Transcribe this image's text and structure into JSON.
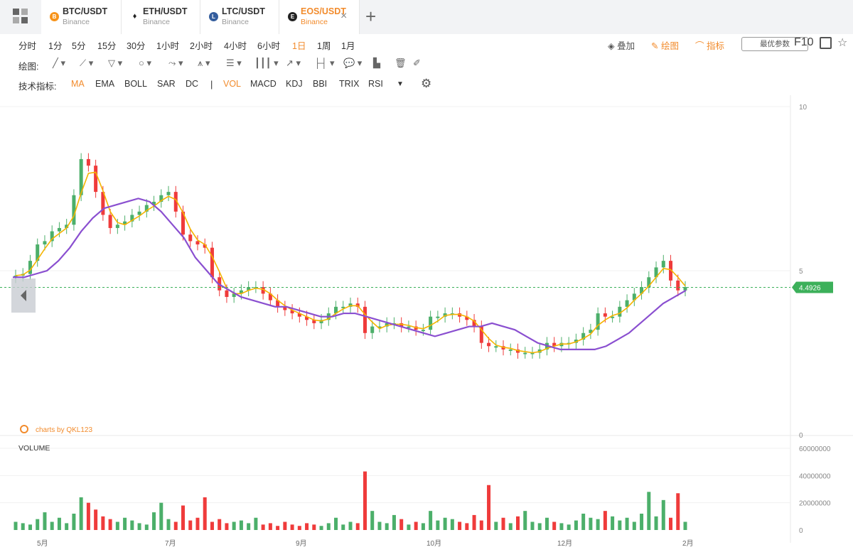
{
  "tabs": [
    {
      "pair": "BTC/USDT",
      "exchange": "Binance",
      "coin_color": "#f7931a",
      "coin_glyph": "B"
    },
    {
      "pair": "ETH/USDT",
      "exchange": "Binance",
      "coin_color": "#ffffff",
      "coin_glyph": "♦"
    },
    {
      "pair": "LTC/USDT",
      "exchange": "Binance",
      "coin_color": "#345d9d",
      "coin_glyph": "L"
    },
    {
      "pair": "EOS/USDT",
      "exchange": "Binance",
      "coin_color": "#222222",
      "coin_glyph": "E"
    }
  ],
  "close_glyph": "×",
  "add_glyph": "+",
  "periods": [
    "分时",
    "1分",
    "5分",
    "15分",
    "30分",
    "1小时",
    "2小时",
    "4小时",
    "6小时",
    "1日",
    "1周",
    "1月"
  ],
  "active_period": "1日",
  "right_tools": {
    "overlay": "叠加",
    "draw": "绘图",
    "indicator": "指标",
    "optimal_params": "最优参数",
    "f10": "F10"
  },
  "draw_label": "绘图:",
  "indicators_label": "技术指标:",
  "indicators_main": [
    "MA",
    "EMA",
    "BOLL",
    "SAR",
    "DC"
  ],
  "indicators_sub": [
    "VOL",
    "MACD",
    "KDJ",
    "BBI",
    "TRIX",
    "RSI"
  ],
  "active_indicator": "MA",
  "active_sub_indicator": "VOL",
  "watermark": "charts by QKL123",
  "volume_label": "VOLUME",
  "colors": {
    "up": "#4caf6a",
    "down": "#ef3b3b",
    "ma_short": "#f5b400",
    "ma_long": "#8a4fd0",
    "accent": "#f28b2c",
    "price_tag": "#3cb05a"
  },
  "chart_data": {
    "type": "candlestick",
    "price_axis": {
      "ticks": [
        "10",
        "5",
        "0"
      ],
      "range": [
        0,
        10
      ]
    },
    "volume_axis": {
      "ticks": [
        "60000000",
        "40000000",
        "20000000",
        "0"
      ],
      "range": [
        0,
        60000000
      ]
    },
    "x_ticks": [
      "5月",
      "7月",
      "9月",
      "10月",
      "12月",
      "2月"
    ],
    "last_price": "4.4926",
    "close": [
      4.85,
      4.9,
      5.3,
      5.8,
      5.9,
      6.2,
      6.3,
      6.4,
      7.3,
      8.4,
      8.2,
      7.4,
      6.7,
      6.3,
      6.4,
      6.5,
      6.7,
      6.8,
      7.0,
      7.1,
      7.3,
      7.4,
      6.8,
      6.1,
      5.9,
      5.8,
      5.7,
      4.8,
      4.4,
      4.2,
      4.3,
      4.4,
      4.5,
      4.5,
      4.3,
      4.1,
      3.9,
      3.8,
      3.7,
      3.6,
      3.5,
      3.4,
      3.5,
      3.7,
      3.9,
      3.9,
      4.0,
      3.9,
      3.1,
      3.3,
      3.3,
      3.4,
      3.4,
      3.3,
      3.3,
      3.2,
      3.2,
      3.6,
      3.6,
      3.7,
      3.7,
      3.6,
      3.5,
      3.3,
      2.8,
      2.7,
      2.7,
      2.6,
      2.6,
      2.5,
      2.5,
      2.5,
      2.6,
      2.8,
      2.7,
      2.8,
      2.8,
      2.9,
      3.1,
      3.2,
      3.7,
      3.6,
      3.6,
      3.9,
      4.1,
      4.3,
      4.5,
      4.8,
      5.1,
      5.3,
      4.7,
      4.4,
      4.5
    ],
    "vol": [
      6,
      5,
      4,
      8,
      13,
      6,
      9,
      5,
      12,
      24,
      20,
      15,
      10,
      8,
      6,
      9,
      7,
      5,
      4,
      13,
      20,
      8,
      6,
      18,
      7,
      9,
      24,
      6,
      8,
      5,
      6,
      7,
      5,
      9,
      4,
      5,
      3,
      6,
      4,
      3,
      5,
      4,
      3,
      5,
      9,
      4,
      6,
      5,
      43,
      14,
      6,
      5,
      11,
      8,
      4,
      6,
      5,
      14,
      7,
      9,
      8,
      6,
      5,
      11,
      7,
      33,
      6,
      9,
      5,
      10,
      14,
      6,
      5,
      9,
      6,
      5,
      4,
      7,
      12,
      9,
      8,
      14,
      10,
      7,
      9,
      6,
      12,
      28,
      10,
      22,
      9,
      27,
      6
    ],
    "ma_long": [
      4.8,
      4.8,
      4.9,
      5.0,
      5.3,
      5.7,
      6.2,
      6.6,
      6.9,
      7.0,
      7.1,
      7.2,
      7.1,
      6.8,
      6.4,
      6.0,
      5.4,
      5.0,
      4.6,
      4.4,
      4.2,
      4.1,
      4.0,
      3.9,
      3.9,
      3.8,
      3.7,
      3.6,
      3.6,
      3.7,
      3.7,
      3.6,
      3.5,
      3.4,
      3.3,
      3.2,
      3.1,
      3.0,
      3.1,
      3.2,
      3.3,
      3.3,
      3.4,
      3.3,
      3.2,
      3.0,
      2.8,
      2.7,
      2.6,
      2.6,
      2.6,
      2.6,
      2.7,
      2.9,
      3.1,
      3.4,
      3.7,
      4.0,
      4.2,
      4.4
    ]
  }
}
